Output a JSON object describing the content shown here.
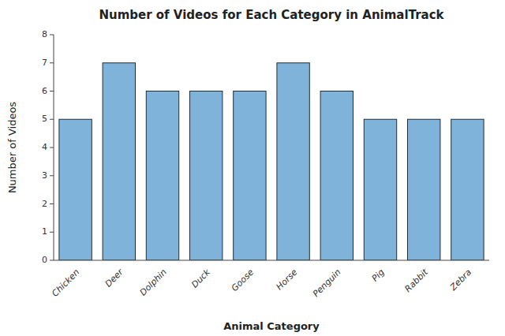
{
  "chart_data": {
    "type": "bar",
    "title": "Number of Videos for Each Category in AnimalTrack",
    "xlabel": "Animal Category",
    "ylabel": "Number of Videos",
    "categories": [
      "Chicken",
      "Deer",
      "Dolphin",
      "Duck",
      "Goose",
      "Horse",
      "Penguin",
      "Pig",
      "Rabbit",
      "Zebra"
    ],
    "values": [
      5,
      7,
      6,
      6,
      6,
      7,
      6,
      5,
      5,
      5
    ],
    "color": "#7fb3d9",
    "ylim": [
      0,
      8
    ],
    "yticks": [
      0,
      1,
      2,
      3,
      4,
      5,
      6,
      7,
      8
    ]
  }
}
